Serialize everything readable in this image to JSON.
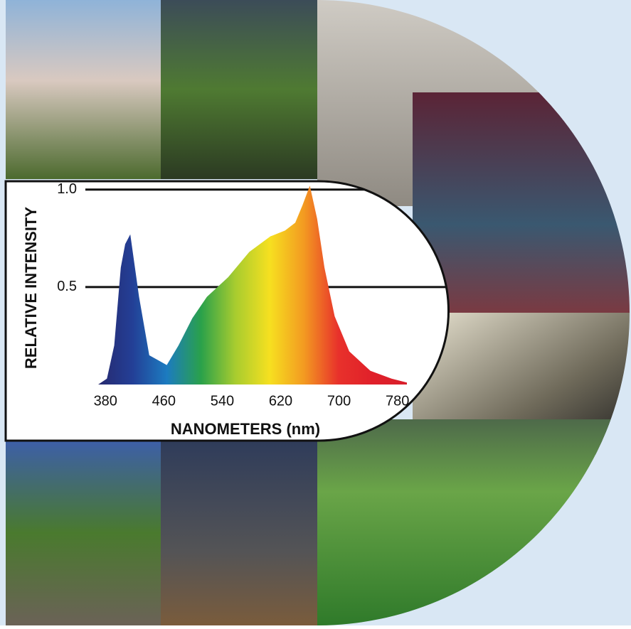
{
  "chart_data": {
    "type": "area",
    "xlabel": "NANOMETERS (nm)",
    "ylabel": "RELATIVE INTENSITY",
    "x": [
      370,
      382,
      392,
      401,
      407,
      414,
      426,
      440,
      464,
      480,
      499,
      519,
      548,
      577,
      606,
      626,
      640,
      650,
      660,
      670,
      680,
      694,
      714,
      743,
      772,
      793
    ],
    "values": [
      0,
      0.03,
      0.2,
      0.6,
      0.72,
      0.77,
      0.45,
      0.15,
      0.1,
      0.2,
      0.34,
      0.45,
      0.55,
      0.68,
      0.76,
      0.79,
      0.83,
      0.92,
      1.02,
      0.85,
      0.6,
      0.35,
      0.17,
      0.07,
      0.03,
      0.01
    ],
    "colors": [
      "#27296f",
      "#233f96",
      "#1c7bc0",
      "#2aa14a",
      "#a8cc2f",
      "#f6e020",
      "#f39a21",
      "#e8312b",
      "#e0202a",
      "#d81f2b"
    ],
    "xlim": [
      370,
      793
    ],
    "ylim": [
      0,
      1.05
    ],
    "xticks": [
      380,
      460,
      540,
      620,
      700,
      780
    ],
    "yticks": [
      0.5,
      {
        "value": 1,
        "label": "1.0"
      }
    ],
    "grid": true
  }
}
